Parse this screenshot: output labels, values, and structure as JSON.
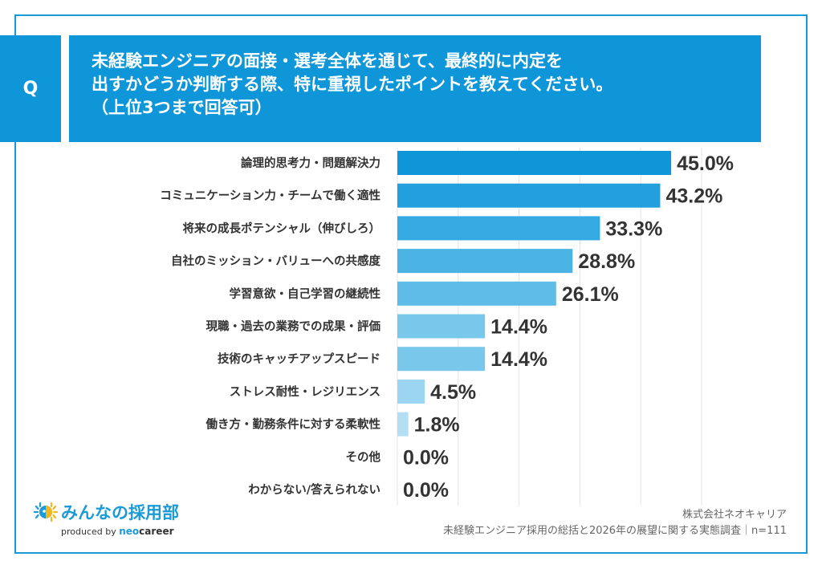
{
  "question": {
    "badge": "Q",
    "lines": [
      "未経験エンジニアの面接・選考全体を通じて、最終的に内定を",
      "出すかどうか判断する際、特に重視したポイントを教えてください。",
      "（上位3つまで回答可）"
    ]
  },
  "chart_data": {
    "type": "bar",
    "orientation": "horizontal",
    "title": "未経験エンジニアの面接・選考全体を通じて、最終的に内定を出すかどうか判断する際、特に重視したポイントを教えてください。（上位3つまで回答可）",
    "categories": [
      "論理的思考力・問題解決力",
      "コミュニケーション力・チームで働く適性",
      "将来の成長ポテンシャル（伸びしろ）",
      "自社のミッション・バリューへの共感度",
      "学習意欲・自己学習の継続性",
      "現職・過去の業務での成果・評価",
      "技術のキャッチアップスピード",
      "ストレス耐性・レジリエンス",
      "働き方・勤務条件に対する柔軟性",
      "その他",
      "わからない/答えられない"
    ],
    "values": [
      45.0,
      43.2,
      33.3,
      28.8,
      26.1,
      14.4,
      14.4,
      4.5,
      1.8,
      0.0,
      0.0
    ],
    "value_labels": [
      "45.0%",
      "43.2%",
      "33.3%",
      "28.8%",
      "26.1%",
      "14.4%",
      "14.4%",
      "4.5%",
      "1.8%",
      "0.0%",
      "0.0%"
    ],
    "colors": [
      "#0f96d8",
      "#22a0dd",
      "#35a9e1",
      "#4cb3e5",
      "#5fbbe8",
      "#7ac7ec",
      "#7ac7ec",
      "#9cd5f1",
      "#b3def4",
      "#c8e7f7",
      "#c8e7f7"
    ],
    "xlim": [
      0,
      50
    ],
    "grid_step": 10,
    "grid": true,
    "xlabel": "",
    "ylabel": ""
  },
  "footer": {
    "logo_text": "みんなの採用部",
    "produced_by": "produced by",
    "brand_neo": "neo",
    "brand_career": "career",
    "company": "株式会社ネオキャリア",
    "survey": "未経験エンジニア採用の総括と2026年の展望に関する実態調査｜n=111"
  }
}
